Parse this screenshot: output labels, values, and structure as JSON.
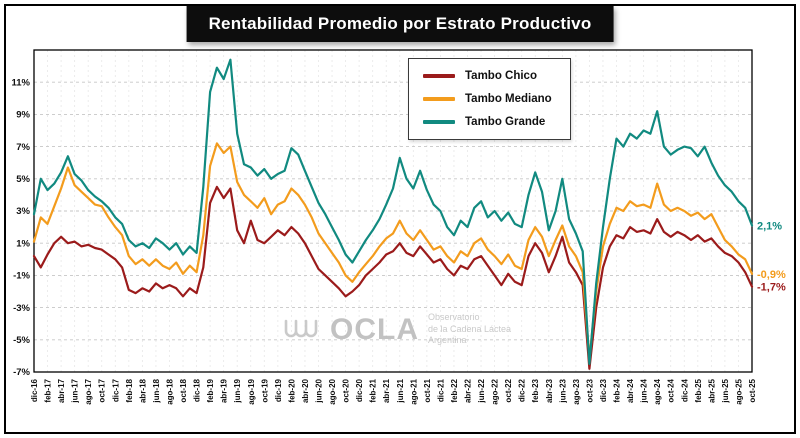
{
  "title": "Rentabilidad Promedio por Estrato Productivo",
  "watermark": {
    "brand": "OCLA",
    "line1": "Observatorio",
    "line2": "de la Cadena Láctea",
    "line3": "Argentina"
  },
  "chart_data": {
    "type": "line",
    "title": "Rentabilidad Promedio por Estrato Productivo",
    "x": [
      "dic-16",
      "ene-17",
      "feb-17",
      "mar-17",
      "abr-17",
      "may-17",
      "jun-17",
      "jul-17",
      "ago-17",
      "sep-17",
      "oct-17",
      "nov-17",
      "dic-17",
      "ene-18",
      "feb-18",
      "mar-18",
      "abr-18",
      "may-18",
      "jun-18",
      "jul-18",
      "ago-18",
      "sep-18",
      "oct-18",
      "nov-18",
      "dic-18",
      "ene-19",
      "feb-19",
      "mar-19",
      "abr-19",
      "may-19",
      "jun-19",
      "jul-19",
      "ago-19",
      "sep-19",
      "oct-19",
      "nov-19",
      "dic-19",
      "ene-20",
      "feb-20",
      "mar-20",
      "abr-20",
      "may-20",
      "jun-20",
      "jul-20",
      "ago-20",
      "sep-20",
      "oct-20",
      "nov-20",
      "dic-20",
      "ene-21",
      "feb-21",
      "mar-21",
      "abr-21",
      "may-21",
      "jun-21",
      "jul-21",
      "ago-21",
      "sep-21",
      "oct-21",
      "nov-21",
      "dic-21",
      "ene-22",
      "feb-22",
      "mar-22",
      "abr-22",
      "may-22",
      "jun-22",
      "jul-22",
      "ago-22",
      "sep-22",
      "oct-22",
      "nov-22",
      "dic-22",
      "ene-23",
      "feb-23",
      "mar-23",
      "abr-23",
      "may-23",
      "jun-23",
      "jul-23",
      "ago-23",
      "sep-23",
      "oct-23",
      "nov-23",
      "dic-23",
      "ene-24",
      "feb-24",
      "mar-24",
      "abr-24",
      "may-24",
      "jun-24",
      "jul-24",
      "ago-24",
      "sep-24",
      "oct-24",
      "nov-24",
      "dic-24",
      "ene-25",
      "feb-25",
      "mar-25",
      "abr-25",
      "may-25",
      "jun-25",
      "jul-25",
      "ago-25",
      "sep-25",
      "oct-25"
    ],
    "tick_every": 2,
    "ylim": [
      -7,
      13
    ],
    "yticks": [
      11,
      9,
      7,
      5,
      3,
      1,
      -1,
      -3,
      -5,
      -7
    ],
    "ytick_suffix": "%",
    "grid": true,
    "legend_position": "top-center",
    "series": [
      {
        "name": "Tambo Chico",
        "color": "#9b1b1b",
        "end_label": "-1,7%",
        "values": [
          0.2,
          -0.5,
          0.3,
          1.0,
          1.4,
          1.0,
          1.1,
          0.8,
          0.9,
          0.7,
          0.6,
          0.3,
          0.0,
          -0.5,
          -1.9,
          -2.1,
          -1.8,
          -2.0,
          -1.5,
          -1.8,
          -1.6,
          -1.8,
          -2.3,
          -1.8,
          -2.1,
          -0.5,
          3.5,
          4.5,
          3.8,
          4.4,
          1.8,
          1.0,
          2.4,
          1.2,
          1.0,
          1.4,
          1.8,
          1.5,
          2.0,
          1.6,
          1.0,
          0.2,
          -0.6,
          -1.0,
          -1.4,
          -1.8,
          -2.3,
          -2.0,
          -1.6,
          -1.0,
          -0.6,
          -0.2,
          0.3,
          0.5,
          1.0,
          0.4,
          0.2,
          0.8,
          0.3,
          -0.2,
          0.0,
          -0.6,
          -1.0,
          -0.4,
          -0.6,
          0.0,
          0.2,
          -0.4,
          -1.0,
          -1.6,
          -0.9,
          -1.4,
          -1.6,
          0.2,
          1.0,
          0.4,
          -0.8,
          0.2,
          1.4,
          -0.2,
          -0.8,
          -1.6,
          -6.8,
          -3.0,
          -0.5,
          0.8,
          1.5,
          1.3,
          2.0,
          1.7,
          1.8,
          1.6,
          2.5,
          1.7,
          1.4,
          1.7,
          1.5,
          1.2,
          1.5,
          1.1,
          1.3,
          0.8,
          0.4,
          0.2,
          -0.2,
          -0.8,
          -1.7
        ]
      },
      {
        "name": "Tambo Mediano",
        "color": "#f39c1d",
        "end_label": "-0,9%",
        "values": [
          1.1,
          2.6,
          2.2,
          3.3,
          4.4,
          5.7,
          4.6,
          4.2,
          3.8,
          3.4,
          3.3,
          2.6,
          2.0,
          1.5,
          0.2,
          -0.3,
          0.0,
          -0.4,
          0.0,
          -0.4,
          -0.6,
          -0.2,
          -0.9,
          -0.4,
          -0.8,
          1.5,
          5.8,
          7.2,
          6.6,
          7.0,
          4.8,
          4.0,
          3.6,
          3.2,
          3.8,
          2.8,
          3.4,
          3.6,
          4.4,
          4.0,
          3.4,
          2.6,
          1.6,
          1.0,
          0.4,
          -0.2,
          -1.0,
          -1.4,
          -0.8,
          -0.3,
          0.2,
          0.8,
          1.3,
          1.6,
          2.4,
          1.6,
          1.2,
          1.8,
          1.2,
          0.6,
          0.8,
          0.2,
          -0.2,
          0.5,
          0.2,
          1.0,
          1.3,
          0.6,
          0.2,
          -0.3,
          0.3,
          -0.4,
          -0.6,
          1.2,
          2.0,
          1.4,
          0.2,
          1.2,
          2.1,
          0.8,
          0.2,
          -0.8,
          -6.2,
          -2.0,
          0.8,
          2.2,
          3.2,
          3.0,
          3.6,
          3.3,
          3.4,
          3.2,
          4.7,
          3.4,
          3.0,
          3.2,
          3.0,
          2.7,
          2.9,
          2.5,
          2.8,
          2.0,
          1.2,
          0.8,
          0.3,
          0.0,
          -0.9
        ]
      },
      {
        "name": "Tambo Grande",
        "color": "#118a80",
        "end_label": "2,1%",
        "values": [
          2.8,
          5.0,
          4.3,
          4.7,
          5.4,
          6.4,
          5.3,
          4.9,
          4.3,
          3.9,
          3.6,
          3.2,
          2.6,
          2.2,
          1.2,
          0.8,
          1.0,
          0.7,
          1.3,
          1.0,
          0.6,
          1.0,
          0.3,
          0.8,
          0.4,
          4.5,
          10.4,
          11.9,
          11.2,
          12.4,
          7.8,
          5.9,
          5.7,
          5.2,
          5.6,
          5.0,
          5.3,
          5.5,
          6.9,
          6.5,
          5.5,
          4.5,
          3.5,
          2.8,
          2.0,
          1.2,
          0.3,
          -0.2,
          0.5,
          1.2,
          1.8,
          2.5,
          3.4,
          4.4,
          6.3,
          5.0,
          4.4,
          5.5,
          4.3,
          3.4,
          3.0,
          2.0,
          1.5,
          2.4,
          2.0,
          3.2,
          3.6,
          2.6,
          3.0,
          2.4,
          2.9,
          2.2,
          2.0,
          4.0,
          5.4,
          4.2,
          1.8,
          3.0,
          5.0,
          2.5,
          1.6,
          0.5,
          -6.5,
          -1.5,
          2.0,
          5.0,
          7.5,
          7.0,
          7.8,
          7.5,
          8.0,
          7.8,
          9.2,
          7.0,
          6.5,
          6.8,
          7.0,
          6.9,
          6.4,
          7.0,
          6.0,
          5.2,
          4.6,
          4.2,
          3.6,
          3.2,
          2.1
        ]
      }
    ]
  }
}
